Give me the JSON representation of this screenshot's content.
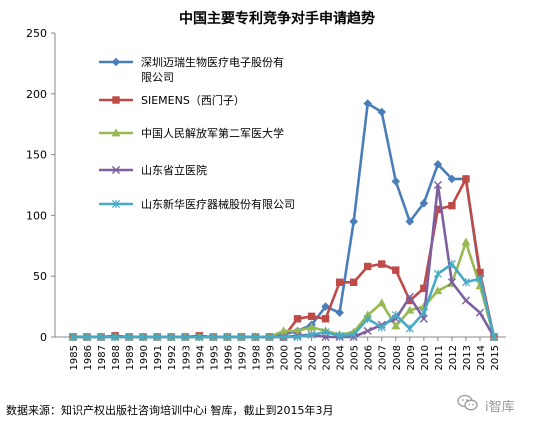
{
  "chart_data": {
    "type": "line",
    "title": "中国主要专利竞争对手申请趋势",
    "categories": [
      "1985",
      "1986",
      "1987",
      "1988",
      "1989",
      "1990",
      "1991",
      "1992",
      "1993",
      "1994",
      "1995",
      "1996",
      "1997",
      "1998",
      "1999",
      "2000",
      "2001",
      "2002",
      "2003",
      "2004",
      "2005",
      "2006",
      "2007",
      "2008",
      "2009",
      "2010",
      "2011",
      "2012",
      "2013",
      "2014",
      "2015"
    ],
    "ylim": [
      0,
      250
    ],
    "yticks": [
      0,
      50,
      100,
      150,
      200,
      250
    ],
    "grid": false,
    "legend_position": "top-left inside plot",
    "series": [
      {
        "name": "深圳迈瑞生物医疗电子股份有限公司",
        "color": "#4a7ebb",
        "marker": "diamond",
        "values": [
          0,
          0,
          0,
          0,
          0,
          0,
          0,
          0,
          0,
          0,
          0,
          0,
          0,
          0,
          0,
          2,
          5,
          10,
          25,
          20,
          95,
          192,
          185,
          128,
          95,
          110,
          142,
          130,
          130,
          50,
          0
        ]
      },
      {
        "name": "SIEMENS（西门子）",
        "color": "#be4b48",
        "marker": "square",
        "values": [
          0,
          0,
          0,
          1,
          0,
          0,
          0,
          0,
          0,
          1,
          0,
          0,
          0,
          0,
          0,
          0,
          15,
          17,
          15,
          45,
          45,
          58,
          60,
          55,
          30,
          40,
          105,
          108,
          130,
          53,
          0
        ]
      },
      {
        "name": "中国人民解放军第二军医大学",
        "color": "#98b954",
        "marker": "triangle",
        "values": [
          0,
          0,
          0,
          0,
          0,
          0,
          0,
          0,
          0,
          0,
          0,
          0,
          0,
          0,
          0,
          5,
          5,
          8,
          5,
          2,
          4,
          18,
          28,
          9,
          22,
          25,
          38,
          44,
          78,
          42,
          0
        ]
      },
      {
        "name": "山东省立医院",
        "color": "#7d60a0",
        "marker": "x",
        "values": [
          0,
          0,
          0,
          0,
          0,
          0,
          0,
          0,
          0,
          0,
          0,
          0,
          0,
          0,
          0,
          0,
          1,
          2,
          0,
          0,
          0,
          5,
          10,
          15,
          33,
          15,
          125,
          45,
          30,
          20,
          0
        ]
      },
      {
        "name": "山东新华医疗器械股份有限公司",
        "color": "#46aac5",
        "marker": "star",
        "values": [
          0,
          0,
          0,
          0,
          0,
          0,
          0,
          0,
          0,
          0,
          0,
          0,
          0,
          0,
          0,
          0,
          0,
          2,
          4,
          1,
          2,
          15,
          8,
          18,
          7,
          20,
          52,
          60,
          45,
          48,
          0
        ]
      }
    ],
    "source_note": "数据来源：知识产权出版社咨询培训中心i 智库，截止到2015年3月",
    "watermark": "i智库"
  }
}
